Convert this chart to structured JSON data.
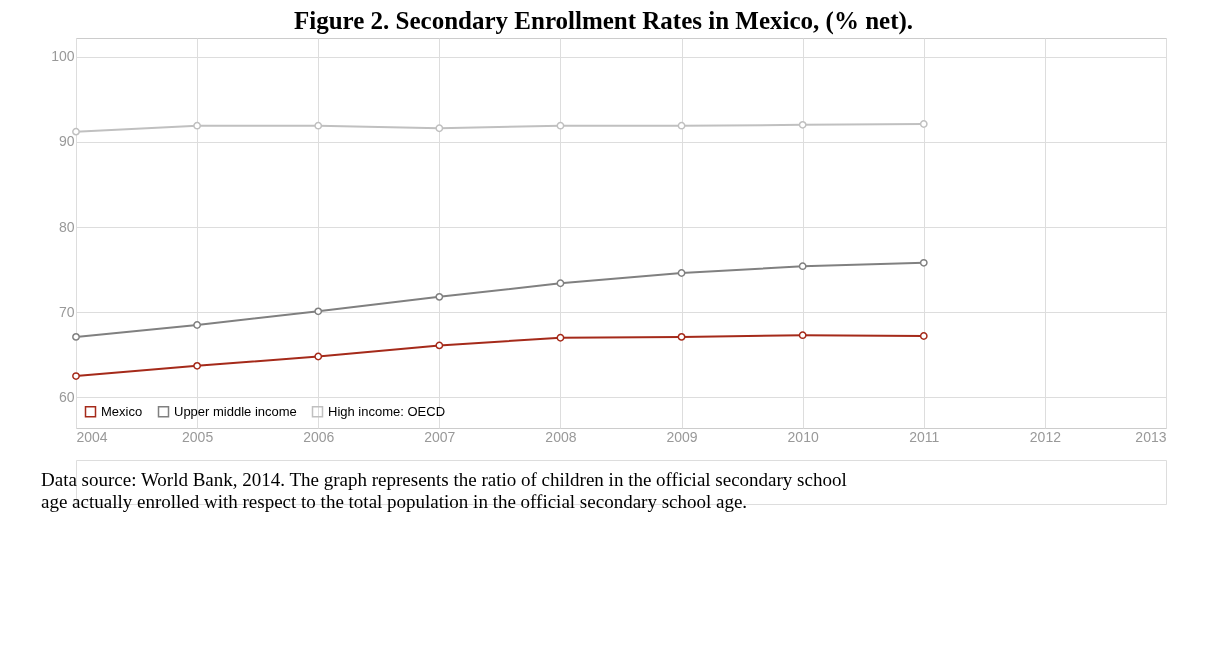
{
  "chart_data": {
    "type": "line",
    "title": "Figure 2. Secondary Enrollment Rates in Mexico, (% net).",
    "x": [
      2004,
      2005,
      2006,
      2007,
      2008,
      2009,
      2010,
      2011
    ],
    "series": [
      {
        "name": "Mexico",
        "color": "#a52a1a",
        "values": [
          62.5,
          63.7,
          64.8,
          66.1,
          67.0,
          67.1,
          67.3,
          67.2
        ]
      },
      {
        "name": "Upper middle income",
        "color": "#808080",
        "values": [
          67.1,
          68.5,
          70.1,
          71.8,
          73.4,
          74.6,
          75.4,
          75.8
        ]
      },
      {
        "name": "High income: OECD",
        "color": "#c0c0c0",
        "values": [
          91.2,
          91.9,
          91.9,
          91.6,
          91.9,
          91.9,
          92.0,
          92.1
        ]
      }
    ],
    "xlim": [
      2004,
      2013
    ],
    "xticks": [
      2004,
      2005,
      2006,
      2007,
      2008,
      2009,
      2010,
      2011,
      2012,
      2013
    ],
    "ylim": [
      56.4,
      102.2
    ],
    "yticks": [
      60,
      70,
      80,
      90,
      100
    ],
    "grid": true,
    "legend": "bottom left",
    "marker": "circle",
    "line_style": "solid",
    "annotations": [
      "Data source: World Bank, 2014. The graph represents the ratio of children in the official secondary school age actually enrolled with respect to the total population in the official secondary school age."
    ]
  }
}
